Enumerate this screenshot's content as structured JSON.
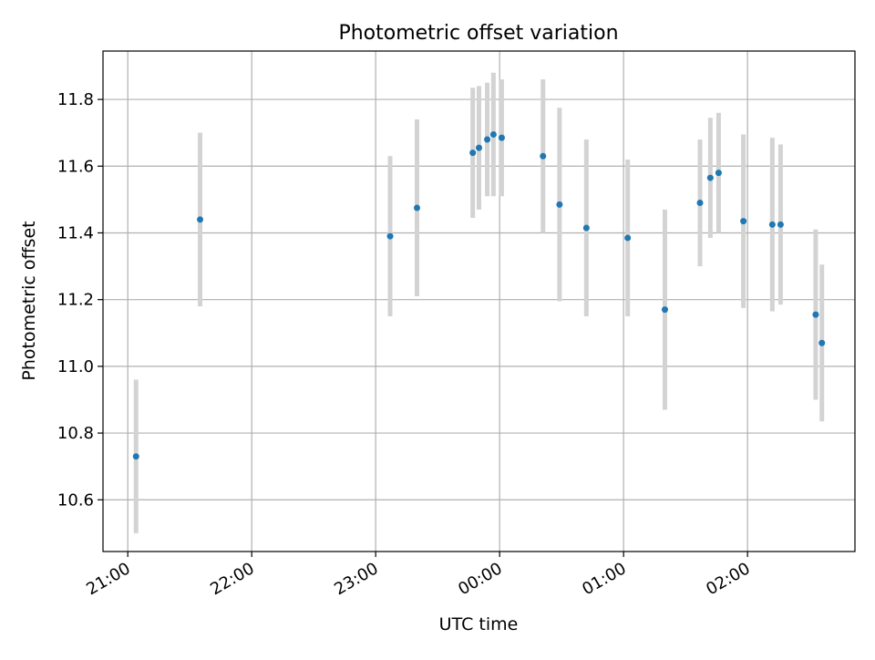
{
  "chart_data": {
    "type": "scatter",
    "title": "Photometric offset variation",
    "xlabel": "UTC time",
    "ylabel": "Photometric offset",
    "x_scale": "time",
    "x_tick_labels": [
      "21:00",
      "22:00",
      "23:00",
      "00:00",
      "01:00",
      "02:00"
    ],
    "y_tick_labels": [
      "10.6",
      "10.8",
      "11.0",
      "11.2",
      "11.4",
      "11.6",
      "11.8"
    ],
    "xlim": [
      "20:48",
      "02:52"
    ],
    "ylim": [
      10.445,
      11.945
    ],
    "grid": true,
    "legend": "none",
    "series": [
      {
        "marker_color": "#1f77b4",
        "errorbar_color": "#d3d3d3",
        "points": [
          {
            "x": "21:04",
            "y": 10.73,
            "err": 0.23
          },
          {
            "x": "21:35",
            "y": 11.44,
            "err": 0.26
          },
          {
            "x": "23:07",
            "y": 11.39,
            "err": 0.24
          },
          {
            "x": "23:20",
            "y": 11.475,
            "err": 0.265
          },
          {
            "x": "23:47",
            "y": 11.64,
            "err": 0.195
          },
          {
            "x": "23:50",
            "y": 11.655,
            "err": 0.185
          },
          {
            "x": "23:54",
            "y": 11.68,
            "err": 0.17
          },
          {
            "x": "23:57",
            "y": 11.695,
            "err": 0.185
          },
          {
            "x": "00:01",
            "y": 11.685,
            "err": 0.175
          },
          {
            "x": "00:21",
            "y": 11.63,
            "err": 0.23
          },
          {
            "x": "00:29",
            "y": 11.485,
            "err": 0.29
          },
          {
            "x": "00:42",
            "y": 11.415,
            "err": 0.265
          },
          {
            "x": "01:02",
            "y": 11.385,
            "err": 0.235
          },
          {
            "x": "01:20",
            "y": 11.17,
            "err": 0.3
          },
          {
            "x": "01:37",
            "y": 11.49,
            "err": 0.19
          },
          {
            "x": "01:42",
            "y": 11.565,
            "err": 0.18
          },
          {
            "x": "01:46",
            "y": 11.58,
            "err": 0.18
          },
          {
            "x": "01:58",
            "y": 11.435,
            "err": 0.26
          },
          {
            "x": "02:12",
            "y": 11.425,
            "err": 0.26
          },
          {
            "x": "02:16",
            "y": 11.425,
            "err": 0.24
          },
          {
            "x": "02:33",
            "y": 11.155,
            "err": 0.255
          },
          {
            "x": "02:36",
            "y": 11.07,
            "err": 0.235
          }
        ]
      }
    ]
  }
}
